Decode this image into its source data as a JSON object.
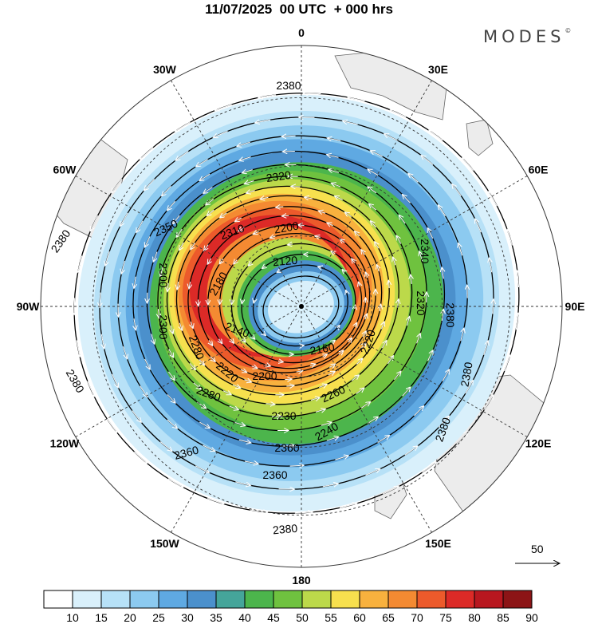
{
  "header": {
    "title": "11/07/2025  00 UTC  + 000 hrs",
    "brand": "MODES",
    "brand_mark": "©"
  },
  "map": {
    "projection": "polar-stereographic-south",
    "meridian_labels": [
      {
        "text": "0",
        "lon": 0
      },
      {
        "text": "30E",
        "lon": 30
      },
      {
        "text": "60E",
        "lon": 60
      },
      {
        "text": "90E",
        "lon": 90
      },
      {
        "text": "120E",
        "lon": 120
      },
      {
        "text": "150E",
        "lon": 150
      },
      {
        "text": "180",
        "lon": 180
      },
      {
        "text": "150W",
        "lon": -150
      },
      {
        "text": "120W",
        "lon": -120
      },
      {
        "text": "90W",
        "lon": -90
      },
      {
        "text": "60W",
        "lon": -60
      },
      {
        "text": "30W",
        "lon": -30
      }
    ],
    "contour_labels": [
      "2380",
      "2380",
      "2380",
      "2380",
      "2380",
      "2380",
      "2380",
      "2360",
      "2360",
      "2360",
      "2350",
      "2340",
      "2320",
      "2320",
      "2310",
      "2300",
      "2300",
      "2280",
      "2280",
      "2260",
      "2240",
      "2220",
      "2220",
      "2200",
      "2200",
      "2180",
      "2160",
      "2140",
      "2120",
      "2230"
    ],
    "vector_reference": "50"
  },
  "colorbar": {
    "ticks": [
      "10",
      "15",
      "20",
      "25",
      "30",
      "35",
      "40",
      "45",
      "50",
      "55",
      "60",
      "65",
      "70",
      "75",
      "80",
      "85",
      "90"
    ],
    "colors": [
      "#ffffff",
      "#d9f0fb",
      "#b7e1f7",
      "#8ccaf0",
      "#5fa9e2",
      "#4b90cc",
      "#45a59a",
      "#4cb54c",
      "#6fc23f",
      "#bcd94a",
      "#f7e04e",
      "#f8b13e",
      "#f48a32",
      "#ec5a2b",
      "#dc2a27",
      "#b8171f",
      "#8c1416"
    ]
  }
}
